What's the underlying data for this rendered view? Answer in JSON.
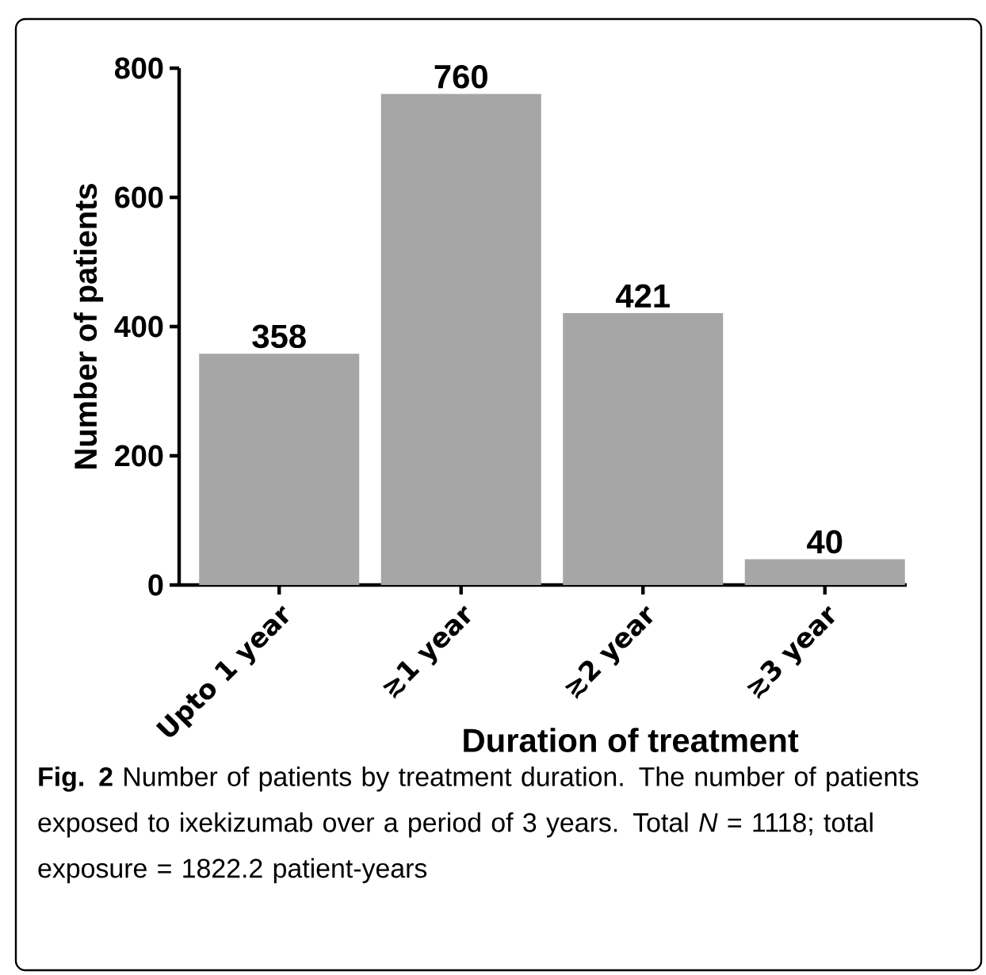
{
  "chart_data": {
    "type": "bar",
    "categories": [
      "Upto 1 year",
      "≳1 year",
      "≳2 year",
      "≳3 year"
    ],
    "values": [
      358,
      760,
      421,
      40
    ],
    "color": "#a6a6a6",
    "data_labels": true,
    "xlabel": "Duration of treatment",
    "ylabel": "Number of patients",
    "ylim": [
      0,
      800
    ],
    "yticks": [
      0,
      200,
      400,
      600,
      800
    ],
    "annotations": [
      "**Fig. 2** Number of patients by treatment duration. The number of patients exposed to ixekizumab over a period of 3 years. Total *N* = 1118; total exposure = 1822.2 patient-years"
    ]
  }
}
